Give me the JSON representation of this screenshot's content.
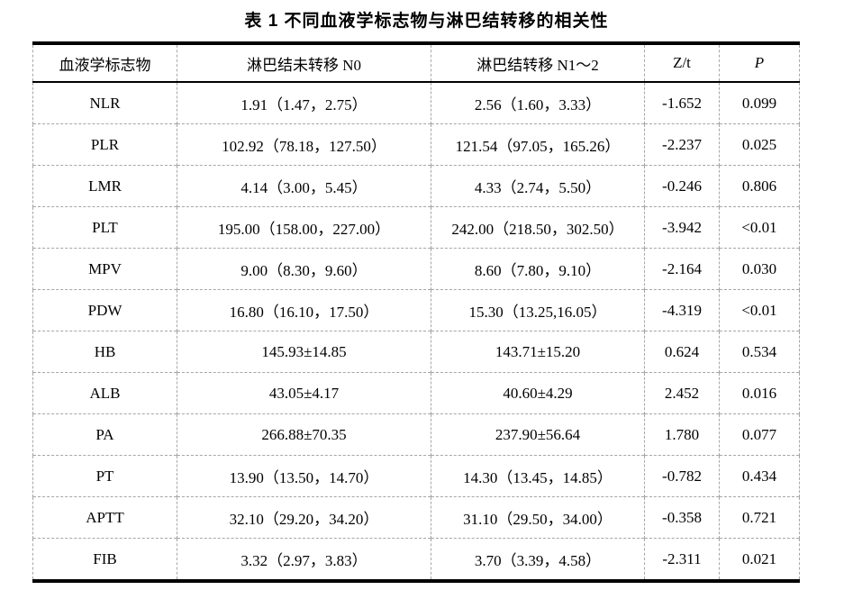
{
  "page_title": "表 1 不同血液学标志物与淋巴结转移的相关性",
  "colors": {
    "background": "#ffffff",
    "text": "#000000",
    "solid_rule": "#000000",
    "dashed_grid": "#a6a6a6"
  },
  "table": {
    "columns": [
      "血液学标志物",
      "淋巴结未转移 N0",
      "淋巴结转移 N1～2",
      "Z/t",
      "P"
    ],
    "rows": [
      [
        "NLR",
        "1.91（1.47，2.75）",
        "2.56（1.60，3.33）",
        "-1.652",
        "0.099"
      ],
      [
        "PLR",
        "102.92（78.18，127.50）",
        "121.54（97.05，165.26）",
        "-2.237",
        "0.025"
      ],
      [
        "LMR",
        "4.14（3.00，5.45）",
        "4.33（2.74，5.50）",
        "-0.246",
        "0.806"
      ],
      [
        "PLT",
        "195.00（158.00，227.00）",
        "242.00（218.50，302.50）",
        "-3.942",
        "<0.01"
      ],
      [
        "MPV",
        "9.00（8.30，9.60）",
        "8.60（7.80，9.10）",
        "-2.164",
        "0.030"
      ],
      [
        "PDW",
        "16.80（16.10，17.50）",
        "15.30（13.25,16.05）",
        "-4.319",
        "<0.01"
      ],
      [
        "HB",
        "145.93±14.85",
        "143.71±15.20",
        "0.624",
        "0.534"
      ],
      [
        "ALB",
        "43.05±4.17",
        "40.60±4.29",
        "2.452",
        "0.016"
      ],
      [
        "PA",
        "266.88±70.35",
        "237.90±56.64",
        "1.780",
        "0.077"
      ],
      [
        "PT",
        "13.90（13.50，14.70）",
        "14.30（13.45，14.85）",
        "-0.782",
        "0.434"
      ],
      [
        "APTT",
        "32.10（29.20，34.20）",
        "31.10（29.50，34.00）",
        "-0.358",
        "0.721"
      ],
      [
        "FIB",
        "3.32（2.97，3.83）",
        "3.70（3.39，4.58）",
        "-2.311",
        "0.021"
      ]
    ]
  }
}
